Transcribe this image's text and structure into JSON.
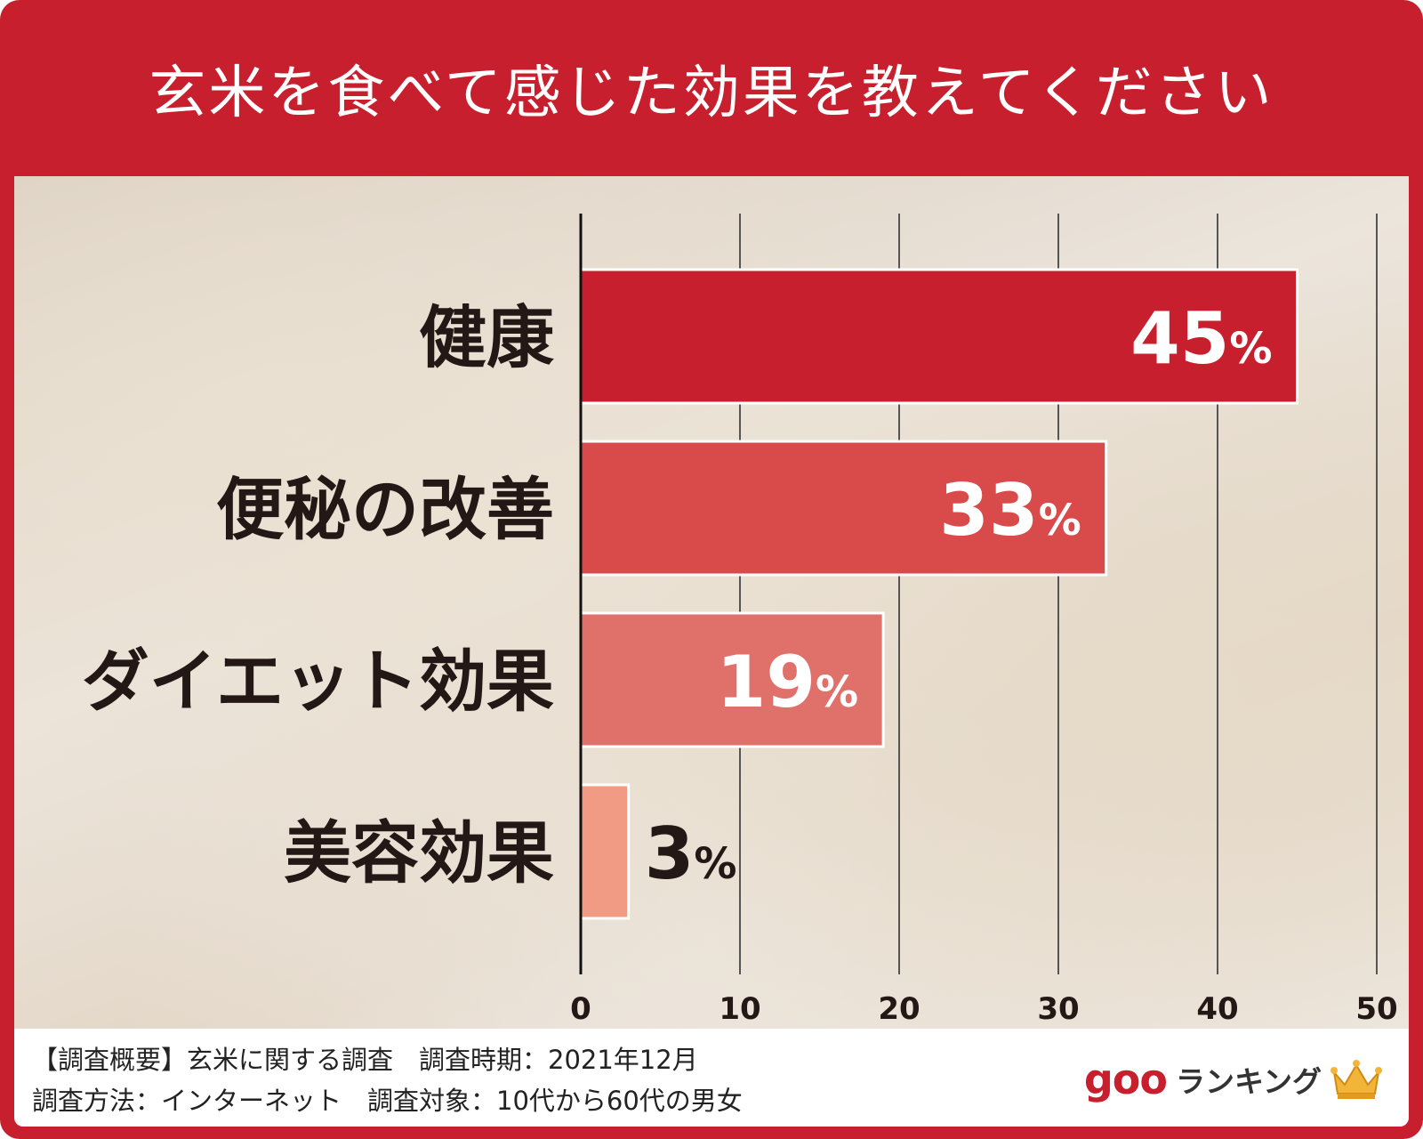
{
  "title": "玄米を食べて感じた効果を教えてください",
  "footer": {
    "line1": "【調査概要】玄米に関する調査　調査時期：2021年12月",
    "line2": "調査方法：インターネット　調査対象：10代から60代の男女"
  },
  "logo": {
    "brand": "goo",
    "text": "ランキング",
    "icon": "crown-icon"
  },
  "colors": {
    "frame": "#c71f2d",
    "bars": [
      "#c71f2d",
      "#d94b4b",
      "#e0716a",
      "#f19b85"
    ]
  },
  "chart_data": {
    "type": "bar",
    "orientation": "horizontal",
    "categories": [
      "健康",
      "便秘の改善",
      "ダイエット効果",
      "美容効果"
    ],
    "values": [
      45,
      33,
      19,
      3
    ],
    "value_labels": [
      "45%",
      "33%",
      "19%",
      "3%"
    ],
    "xlim": [
      0,
      50
    ],
    "x_ticks": [
      0,
      10,
      20,
      30,
      40,
      50
    ],
    "x_tick_labels": [
      "0",
      "10",
      "20",
      "30",
      "40",
      "50"
    ],
    "grid": true
  }
}
